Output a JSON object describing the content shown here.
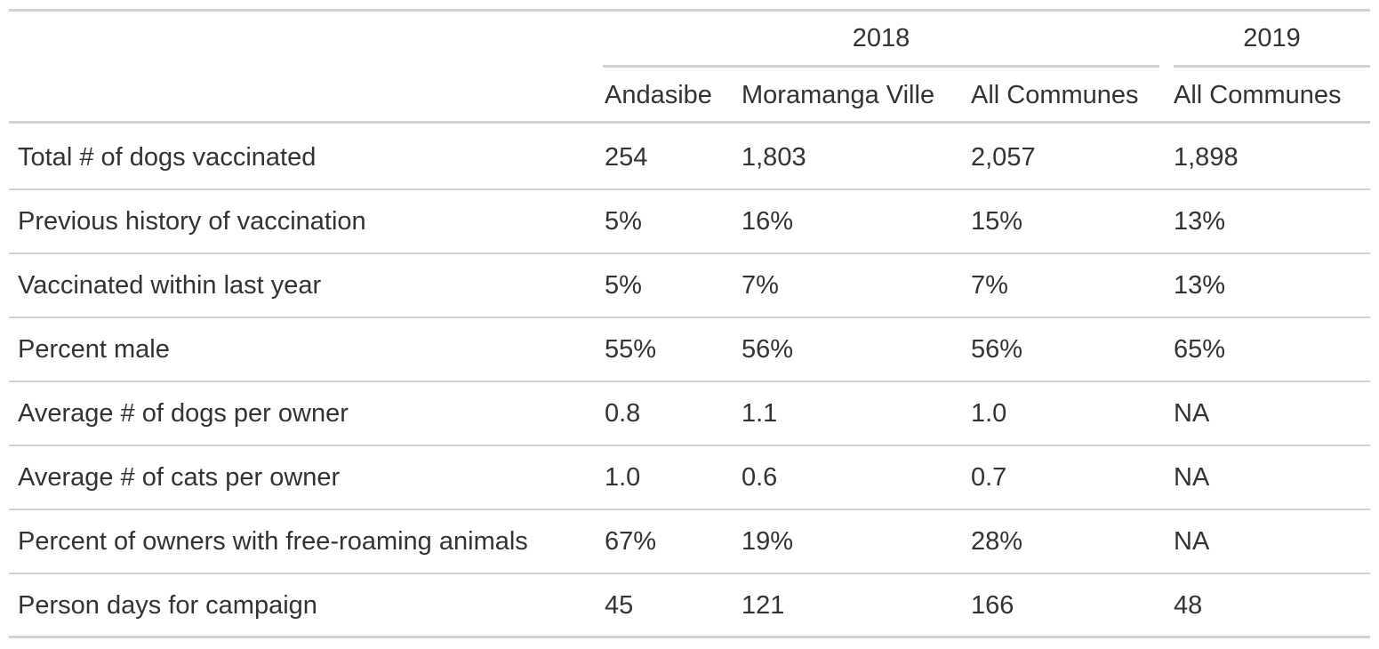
{
  "chart_data": {
    "type": "table",
    "spanners": [
      {
        "label": "2018"
      },
      {
        "label": "2019"
      }
    ],
    "columns": [
      "",
      "Andasibe",
      "Moramanga Ville",
      "All Communes",
      "All Communes"
    ],
    "rows": [
      [
        "Total # of dogs vaccinated",
        "254",
        "1,803",
        "2,057",
        "1,898"
      ],
      [
        "Previous history of vaccination",
        "5%",
        "16%",
        "15%",
        "13%"
      ],
      [
        "Vaccinated within last year",
        "5%",
        "7%",
        "7%",
        "13%"
      ],
      [
        "Percent male",
        "55%",
        "56%",
        "56%",
        "65%"
      ],
      [
        "Average # of dogs per owner",
        "0.8",
        "1.1",
        "1.0",
        "NA"
      ],
      [
        "Average # of cats per owner",
        "1.0",
        "0.6",
        "0.7",
        "NA"
      ],
      [
        "Percent of owners with free-roaming animals",
        "67%",
        "19%",
        "28%",
        "NA"
      ],
      [
        "Person days for campaign",
        "45",
        "121",
        "166",
        "48"
      ]
    ]
  }
}
